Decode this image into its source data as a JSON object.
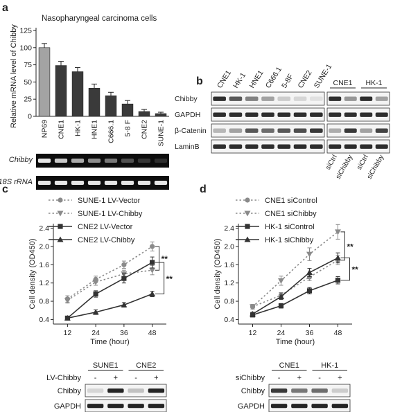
{
  "panel_letters": [
    "a",
    "b",
    "c",
    "d"
  ],
  "chart_data": [
    {
      "panel": "a",
      "type": "bar",
      "title": "Nasopharyngeal carcinoma cells",
      "ylabel": "Relative mRNA level of Chibby",
      "xlabel": "",
      "ylim": [
        0,
        125
      ],
      "yticks": [
        0,
        25,
        50,
        75,
        100,
        125
      ],
      "categories": [
        "NP69",
        "CNE1",
        "HK-1",
        "HNE1",
        "C666.1",
        "5-8 F",
        "CNE2",
        "SUNE-1"
      ],
      "values": [
        100,
        74,
        65,
        41,
        30,
        18,
        7,
        4
      ],
      "errors": [
        6,
        6,
        6,
        6,
        5,
        5,
        3,
        2
      ],
      "bar_colors": [
        "#a3a3a3",
        "#3a3a3a",
        "#3a3a3a",
        "#3a3a3a",
        "#3a3a3a",
        "#3a3a3a",
        "#3a3a3a",
        "#3a3a3a"
      ],
      "grid": false
    },
    {
      "panel": "c",
      "type": "line",
      "xlabel": "Time (hour)",
      "ylabel": "Cell density (OD450)",
      "x": [
        12,
        24,
        36,
        48
      ],
      "ylim": [
        0.3,
        2.5
      ],
      "yticks": [
        0.4,
        0.8,
        1.2,
        1.6,
        2.0,
        2.4
      ],
      "legend_position": "top-left",
      "series": [
        {
          "name": "SUNE-1 LV-Vector",
          "values": [
            0.85,
            1.28,
            1.6,
            2.0
          ],
          "errors": [
            0.07,
            0.07,
            0.08,
            0.1
          ],
          "color": "#8a8a8a",
          "dash": true,
          "marker": "circle"
        },
        {
          "name": "SUNE-1 LV-Chibby",
          "values": [
            0.82,
            1.22,
            1.4,
            1.48
          ],
          "errors": [
            0.06,
            0.07,
            0.08,
            0.1
          ],
          "color": "#8a8a8a",
          "dash": true,
          "marker": "triangle-down"
        },
        {
          "name": "CNE2 LV-Vector",
          "values": [
            0.43,
            0.96,
            1.3,
            1.65
          ],
          "errors": [
            0.04,
            0.07,
            0.1,
            0.12
          ],
          "color": "#333333",
          "dash": false,
          "marker": "square"
        },
        {
          "name": "CNE2 LV-Chibby",
          "values": [
            0.43,
            0.56,
            0.72,
            0.96
          ],
          "errors": [
            0.04,
            0.05,
            0.05,
            0.06
          ],
          "color": "#333333",
          "dash": false,
          "marker": "triangle-up"
        }
      ],
      "significance": [
        "**",
        "**"
      ],
      "grid": false
    },
    {
      "panel": "d",
      "type": "line",
      "xlabel": "Time (hour)",
      "ylabel": "Cell density (OD450)",
      "x": [
        12,
        24,
        36,
        48
      ],
      "ylim": [
        0.3,
        2.5
      ],
      "yticks": [
        0.4,
        0.8,
        1.2,
        1.6,
        2.0,
        2.4
      ],
      "legend_position": "top-left",
      "series": [
        {
          "name": "CNE1 siControl",
          "values": [
            0.68,
            0.93,
            1.33,
            1.7
          ],
          "errors": [
            0.05,
            0.06,
            0.08,
            0.1
          ],
          "color": "#8a8a8a",
          "dash": true,
          "marker": "circle"
        },
        {
          "name": "CNE1 siChibby",
          "values": [
            0.68,
            1.25,
            1.83,
            2.32
          ],
          "errors": [
            0.05,
            0.1,
            0.14,
            0.16
          ],
          "color": "#8a8a8a",
          "dash": true,
          "marker": "triangle-down"
        },
        {
          "name": "HK-1 siControl",
          "values": [
            0.5,
            0.7,
            1.03,
            1.26
          ],
          "errors": [
            0.03,
            0.05,
            0.07,
            0.08
          ],
          "color": "#333333",
          "dash": false,
          "marker": "square"
        },
        {
          "name": "HK-1 siChibby",
          "values": [
            0.52,
            0.9,
            1.43,
            1.75
          ],
          "errors": [
            0.04,
            0.06,
            0.09,
            0.11
          ],
          "color": "#333333",
          "dash": false,
          "marker": "triangle-up"
        }
      ],
      "significance": [
        "**",
        "**"
      ],
      "grid": false
    }
  ],
  "blot_a": {
    "rows": [
      "Chibby",
      "18S rRNA"
    ],
    "intensity": [
      [
        1.0,
        0.85,
        0.7,
        0.55,
        0.45,
        0.25,
        0.12,
        0.08
      ],
      [
        1,
        1,
        1,
        1,
        1,
        1,
        1,
        1
      ]
    ]
  },
  "blot_b": {
    "lanes": [
      "CNE1",
      "HK-1",
      "HNE1",
      "C666.1",
      "5-8F",
      "CNE2",
      "SUNE-1"
    ],
    "rows": [
      "Chibby",
      "GAPDH",
      "β-Catenin",
      "LaminB"
    ],
    "intensity": [
      [
        0.9,
        0.7,
        0.5,
        0.35,
        0.15,
        0.1,
        0.05
      ],
      [
        0.9,
        0.9,
        0.9,
        0.9,
        0.9,
        0.9,
        0.9
      ],
      [
        0.25,
        0.35,
        0.7,
        0.6,
        0.7,
        0.75,
        0.85
      ],
      [
        0.9,
        0.9,
        0.9,
        0.9,
        0.9,
        0.9,
        0.9
      ]
    ],
    "right_groups": [
      "CNE1",
      "HK-1"
    ],
    "right_lanes": [
      "siCtrl",
      "siChibby",
      "siCtrl",
      "siChibby"
    ],
    "right_intensity": [
      [
        0.9,
        0.4,
        0.9,
        0.35
      ],
      [
        0.9,
        0.9,
        0.9,
        0.9
      ],
      [
        0.3,
        0.85,
        0.35,
        0.8
      ],
      [
        0.9,
        0.9,
        0.9,
        0.9
      ]
    ]
  },
  "blot_c": {
    "condition_label": "LV-Chibby",
    "groups": [
      "SUNE1",
      "CNE2"
    ],
    "signs": [
      "-",
      "+",
      "-",
      "+"
    ],
    "rows": [
      "Chibby",
      "GAPDH"
    ],
    "intensity": [
      [
        0.1,
        0.95,
        0.2,
        0.95
      ],
      [
        0.95,
        0.95,
        0.95,
        0.95
      ]
    ]
  },
  "blot_d": {
    "condition_label": "siChibby",
    "groups": [
      "CNE1",
      "HK-1"
    ],
    "signs": [
      "-",
      "+",
      "-",
      "+"
    ],
    "rows": [
      "Chibby",
      "GAPDH"
    ],
    "intensity": [
      [
        0.85,
        0.55,
        0.6,
        0.15
      ],
      [
        0.95,
        0.95,
        0.95,
        0.95
      ]
    ]
  }
}
